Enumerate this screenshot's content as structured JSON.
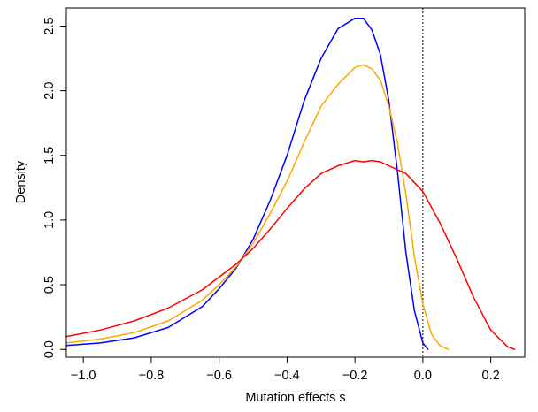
{
  "chart_data": {
    "type": "line",
    "title": "",
    "xlabel": "Mutation effects s",
    "ylabel": "Density",
    "xlim": [
      -1.05,
      0.3
    ],
    "ylim": [
      -0.06,
      2.64
    ],
    "xticks": [
      -1.0,
      -0.8,
      -0.6,
      -0.4,
      -0.2,
      0.0,
      0.2
    ],
    "xtick_labels": [
      "−1.0",
      "−0.8",
      "−0.6",
      "−0.4",
      "−0.2",
      "0.0",
      "0.2"
    ],
    "yticks": [
      0.0,
      0.5,
      1.0,
      1.5,
      2.0,
      2.5
    ],
    "ytick_labels": [
      "0.0",
      "0.5",
      "1.0",
      "1.5",
      "2.0",
      "2.5"
    ],
    "grid": false,
    "legend": "none",
    "reference_line": {
      "x": 0.0,
      "style": "dotted",
      "color": "#000000"
    },
    "series": [
      {
        "color": "#0000ff",
        "x": [
          -1.05,
          -0.95,
          -0.85,
          -0.75,
          -0.65,
          -0.6,
          -0.55,
          -0.5,
          -0.45,
          -0.4,
          -0.35,
          -0.3,
          -0.25,
          -0.2,
          -0.175,
          -0.15,
          -0.125,
          -0.1,
          -0.075,
          -0.05,
          -0.025,
          0.0,
          0.015
        ],
        "y": [
          0.03,
          0.05,
          0.09,
          0.17,
          0.33,
          0.47,
          0.63,
          0.85,
          1.15,
          1.5,
          1.92,
          2.25,
          2.48,
          2.56,
          2.56,
          2.47,
          2.28,
          1.92,
          1.38,
          0.75,
          0.3,
          0.05,
          0.0
        ]
      },
      {
        "color": "#ffa500",
        "x": [
          -1.05,
          -0.95,
          -0.85,
          -0.75,
          -0.65,
          -0.6,
          -0.55,
          -0.5,
          -0.45,
          -0.4,
          -0.35,
          -0.3,
          -0.25,
          -0.2,
          -0.175,
          -0.15,
          -0.125,
          -0.1,
          -0.075,
          -0.05,
          -0.025,
          0.0,
          0.025,
          0.05,
          0.075
        ],
        "y": [
          0.05,
          0.08,
          0.13,
          0.22,
          0.38,
          0.5,
          0.64,
          0.82,
          1.05,
          1.3,
          1.6,
          1.88,
          2.05,
          2.18,
          2.2,
          2.17,
          2.08,
          1.88,
          1.6,
          1.2,
          0.72,
          0.35,
          0.12,
          0.03,
          0.0
        ]
      },
      {
        "color": "#ff0000",
        "x": [
          -1.05,
          -0.95,
          -0.85,
          -0.75,
          -0.65,
          -0.55,
          -0.5,
          -0.45,
          -0.4,
          -0.35,
          -0.3,
          -0.25,
          -0.2,
          -0.175,
          -0.15,
          -0.125,
          -0.1,
          -0.05,
          0.0,
          0.05,
          0.1,
          0.15,
          0.2,
          0.25,
          0.27
        ],
        "y": [
          0.1,
          0.15,
          0.22,
          0.32,
          0.46,
          0.66,
          0.78,
          0.93,
          1.09,
          1.24,
          1.36,
          1.42,
          1.46,
          1.45,
          1.46,
          1.45,
          1.42,
          1.36,
          1.22,
          0.98,
          0.7,
          0.4,
          0.15,
          0.02,
          0.0
        ]
      }
    ]
  }
}
